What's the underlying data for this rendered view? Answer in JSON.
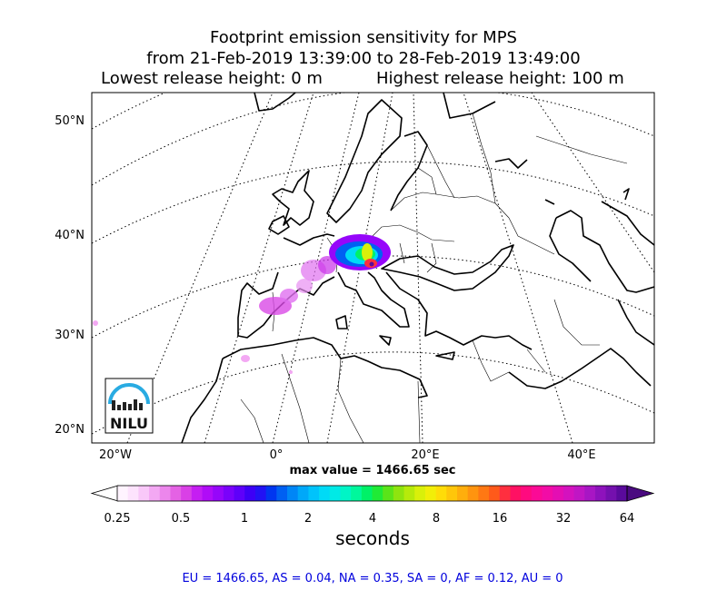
{
  "title": {
    "line1": "Footprint emission sensitivity for MPS",
    "line2": "from 21-Feb-2019 13:39:00 to 28-Feb-2019 13:49:00",
    "lowest_release": "Lowest release height: 0 m",
    "highest_release": "Highest release height: 100 m"
  },
  "axes": {
    "lat_labels": [
      "50°N",
      "40°N",
      "30°N",
      "20°N"
    ],
    "lon_labels": [
      "20°W",
      "0°",
      "20°E",
      "40°E"
    ]
  },
  "max_value": "max value = 1466.65 sec",
  "colorbar": {
    "ticks": [
      "0.25",
      "0.5",
      "1",
      "2",
      "4",
      "8",
      "16",
      "32",
      "64"
    ],
    "label": "seconds",
    "colors": [
      "#fff4ff",
      "#fde3fd",
      "#f9c8f9",
      "#f3a8f3",
      "#ec86ec",
      "#e462e4",
      "#d940e6",
      "#c51ef2",
      "#b00cf7",
      "#9606fa",
      "#7a02fb",
      "#5e00fa",
      "#3d00f6",
      "#2212f4",
      "#0036f0",
      "#0060f2",
      "#0086f6",
      "#00a8f9",
      "#00c3fb",
      "#00daf6",
      "#00eae6",
      "#00f5c6",
      "#00f79c",
      "#00f167",
      "#20ea36",
      "#5ae419",
      "#8ee40f",
      "#b6ea0b",
      "#d9f00a",
      "#f2ee08",
      "#ffdc08",
      "#ffc60a",
      "#ffae0c",
      "#ff940f",
      "#ff7813",
      "#ff5a1a",
      "#ff2f3f",
      "#ff1163",
      "#ff0a7f",
      "#fb0a96",
      "#f20ca6",
      "#e40eb3",
      "#d412be",
      "#c016c4",
      "#a816c4",
      "#8e12bc",
      "#7410ae",
      "#5a0a9c"
    ]
  },
  "logo": {
    "text": "NILU",
    "color": "#29abe2"
  },
  "stats": "EU = 1466.65,  AS = 0.04,  NA = 0.35,  SA = 0,  AF = 0.12,  AU = 0"
}
